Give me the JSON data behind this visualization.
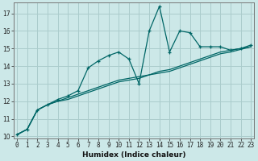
{
  "title": "",
  "xlabel": "Humidex (Indice chaleur)",
  "ylabel": "",
  "bg_color": "#cce8e8",
  "grid_color": "#aacccc",
  "line_color": "#006666",
  "x_values": [
    0,
    1,
    2,
    3,
    4,
    5,
    6,
    7,
    8,
    9,
    10,
    11,
    12,
    13,
    14,
    15,
    16,
    17,
    18,
    19,
    20,
    21,
    22,
    23
  ],
  "line1_y": [
    10.1,
    10.4,
    11.5,
    11.8,
    12.1,
    12.3,
    12.6,
    13.9,
    14.3,
    14.6,
    14.8,
    14.4,
    13.0,
    16.0,
    17.4,
    14.8,
    16.0,
    15.9,
    15.1,
    15.1,
    15.1,
    14.9,
    15.0,
    15.2
  ],
  "line2_y": [
    10.1,
    10.4,
    11.5,
    11.8,
    12.0,
    12.2,
    12.4,
    12.6,
    12.8,
    13.0,
    13.2,
    13.3,
    13.4,
    13.5,
    13.7,
    13.8,
    14.0,
    14.2,
    14.4,
    14.6,
    14.8,
    14.9,
    15.0,
    15.1
  ],
  "line3_y": [
    10.1,
    10.4,
    11.5,
    11.8,
    12.0,
    12.1,
    12.3,
    12.5,
    12.7,
    12.9,
    13.1,
    13.2,
    13.3,
    13.5,
    13.6,
    13.7,
    13.9,
    14.1,
    14.3,
    14.5,
    14.7,
    14.8,
    14.95,
    15.1
  ],
  "ylim": [
    9.9,
    17.6
  ],
  "yticks": [
    10,
    11,
    12,
    13,
    14,
    15,
    16,
    17
  ],
  "xticks": [
    0,
    1,
    2,
    3,
    4,
    5,
    6,
    7,
    8,
    9,
    10,
    11,
    12,
    13,
    14,
    15,
    16,
    17,
    18,
    19,
    20,
    21,
    22,
    23
  ],
  "xlabel_fontsize": 6.5,
  "tick_fontsize": 5.5
}
